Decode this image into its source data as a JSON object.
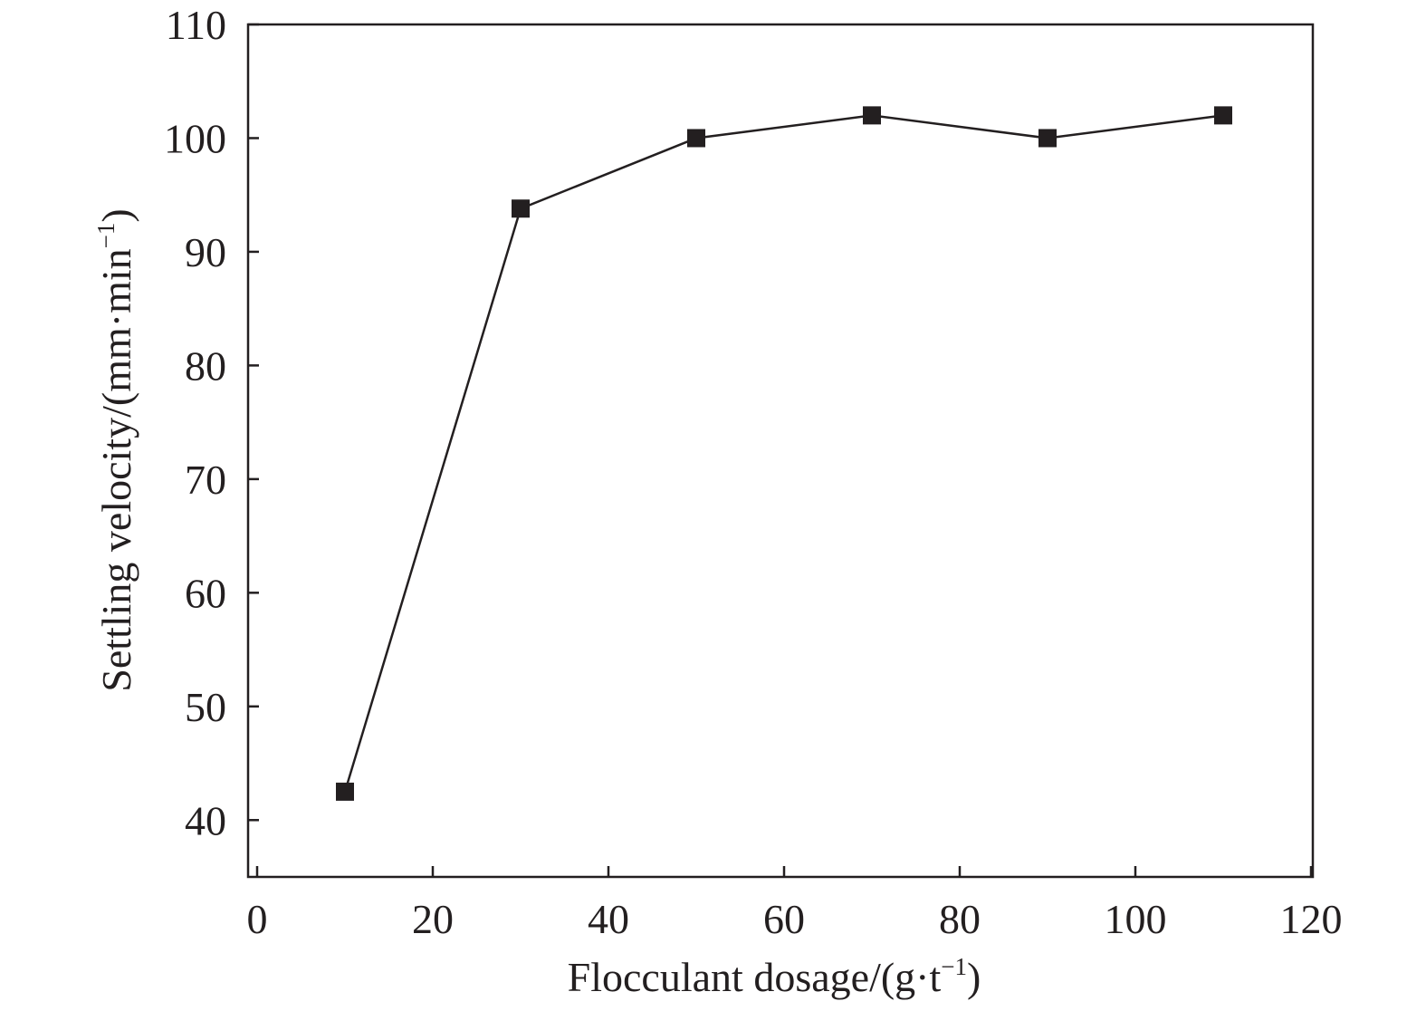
{
  "chart_data": {
    "type": "line",
    "title": "",
    "xlabel": {
      "base": "Flocculant dosage/(g·t",
      "sup": "−1",
      "close": ")"
    },
    "ylabel": {
      "base": "Settling velocity/(mm·min",
      "sup": "−1",
      "close": ")"
    },
    "xlim": [
      0,
      120
    ],
    "ylim": [
      35,
      110
    ],
    "xticks": [
      0,
      20,
      40,
      60,
      80,
      100,
      120
    ],
    "yticks": [
      40,
      50,
      60,
      70,
      80,
      90,
      100,
      110
    ],
    "grid": false,
    "legend": "none",
    "marker": "square",
    "series": [
      {
        "x": [
          10,
          30,
          50,
          70,
          90,
          110
        ],
        "y": [
          42.5,
          93.8,
          100,
          102,
          100,
          102
        ]
      }
    ],
    "colors": {
      "line": "#231f20",
      "marker": "#231f20",
      "axis": "#231f20"
    }
  }
}
